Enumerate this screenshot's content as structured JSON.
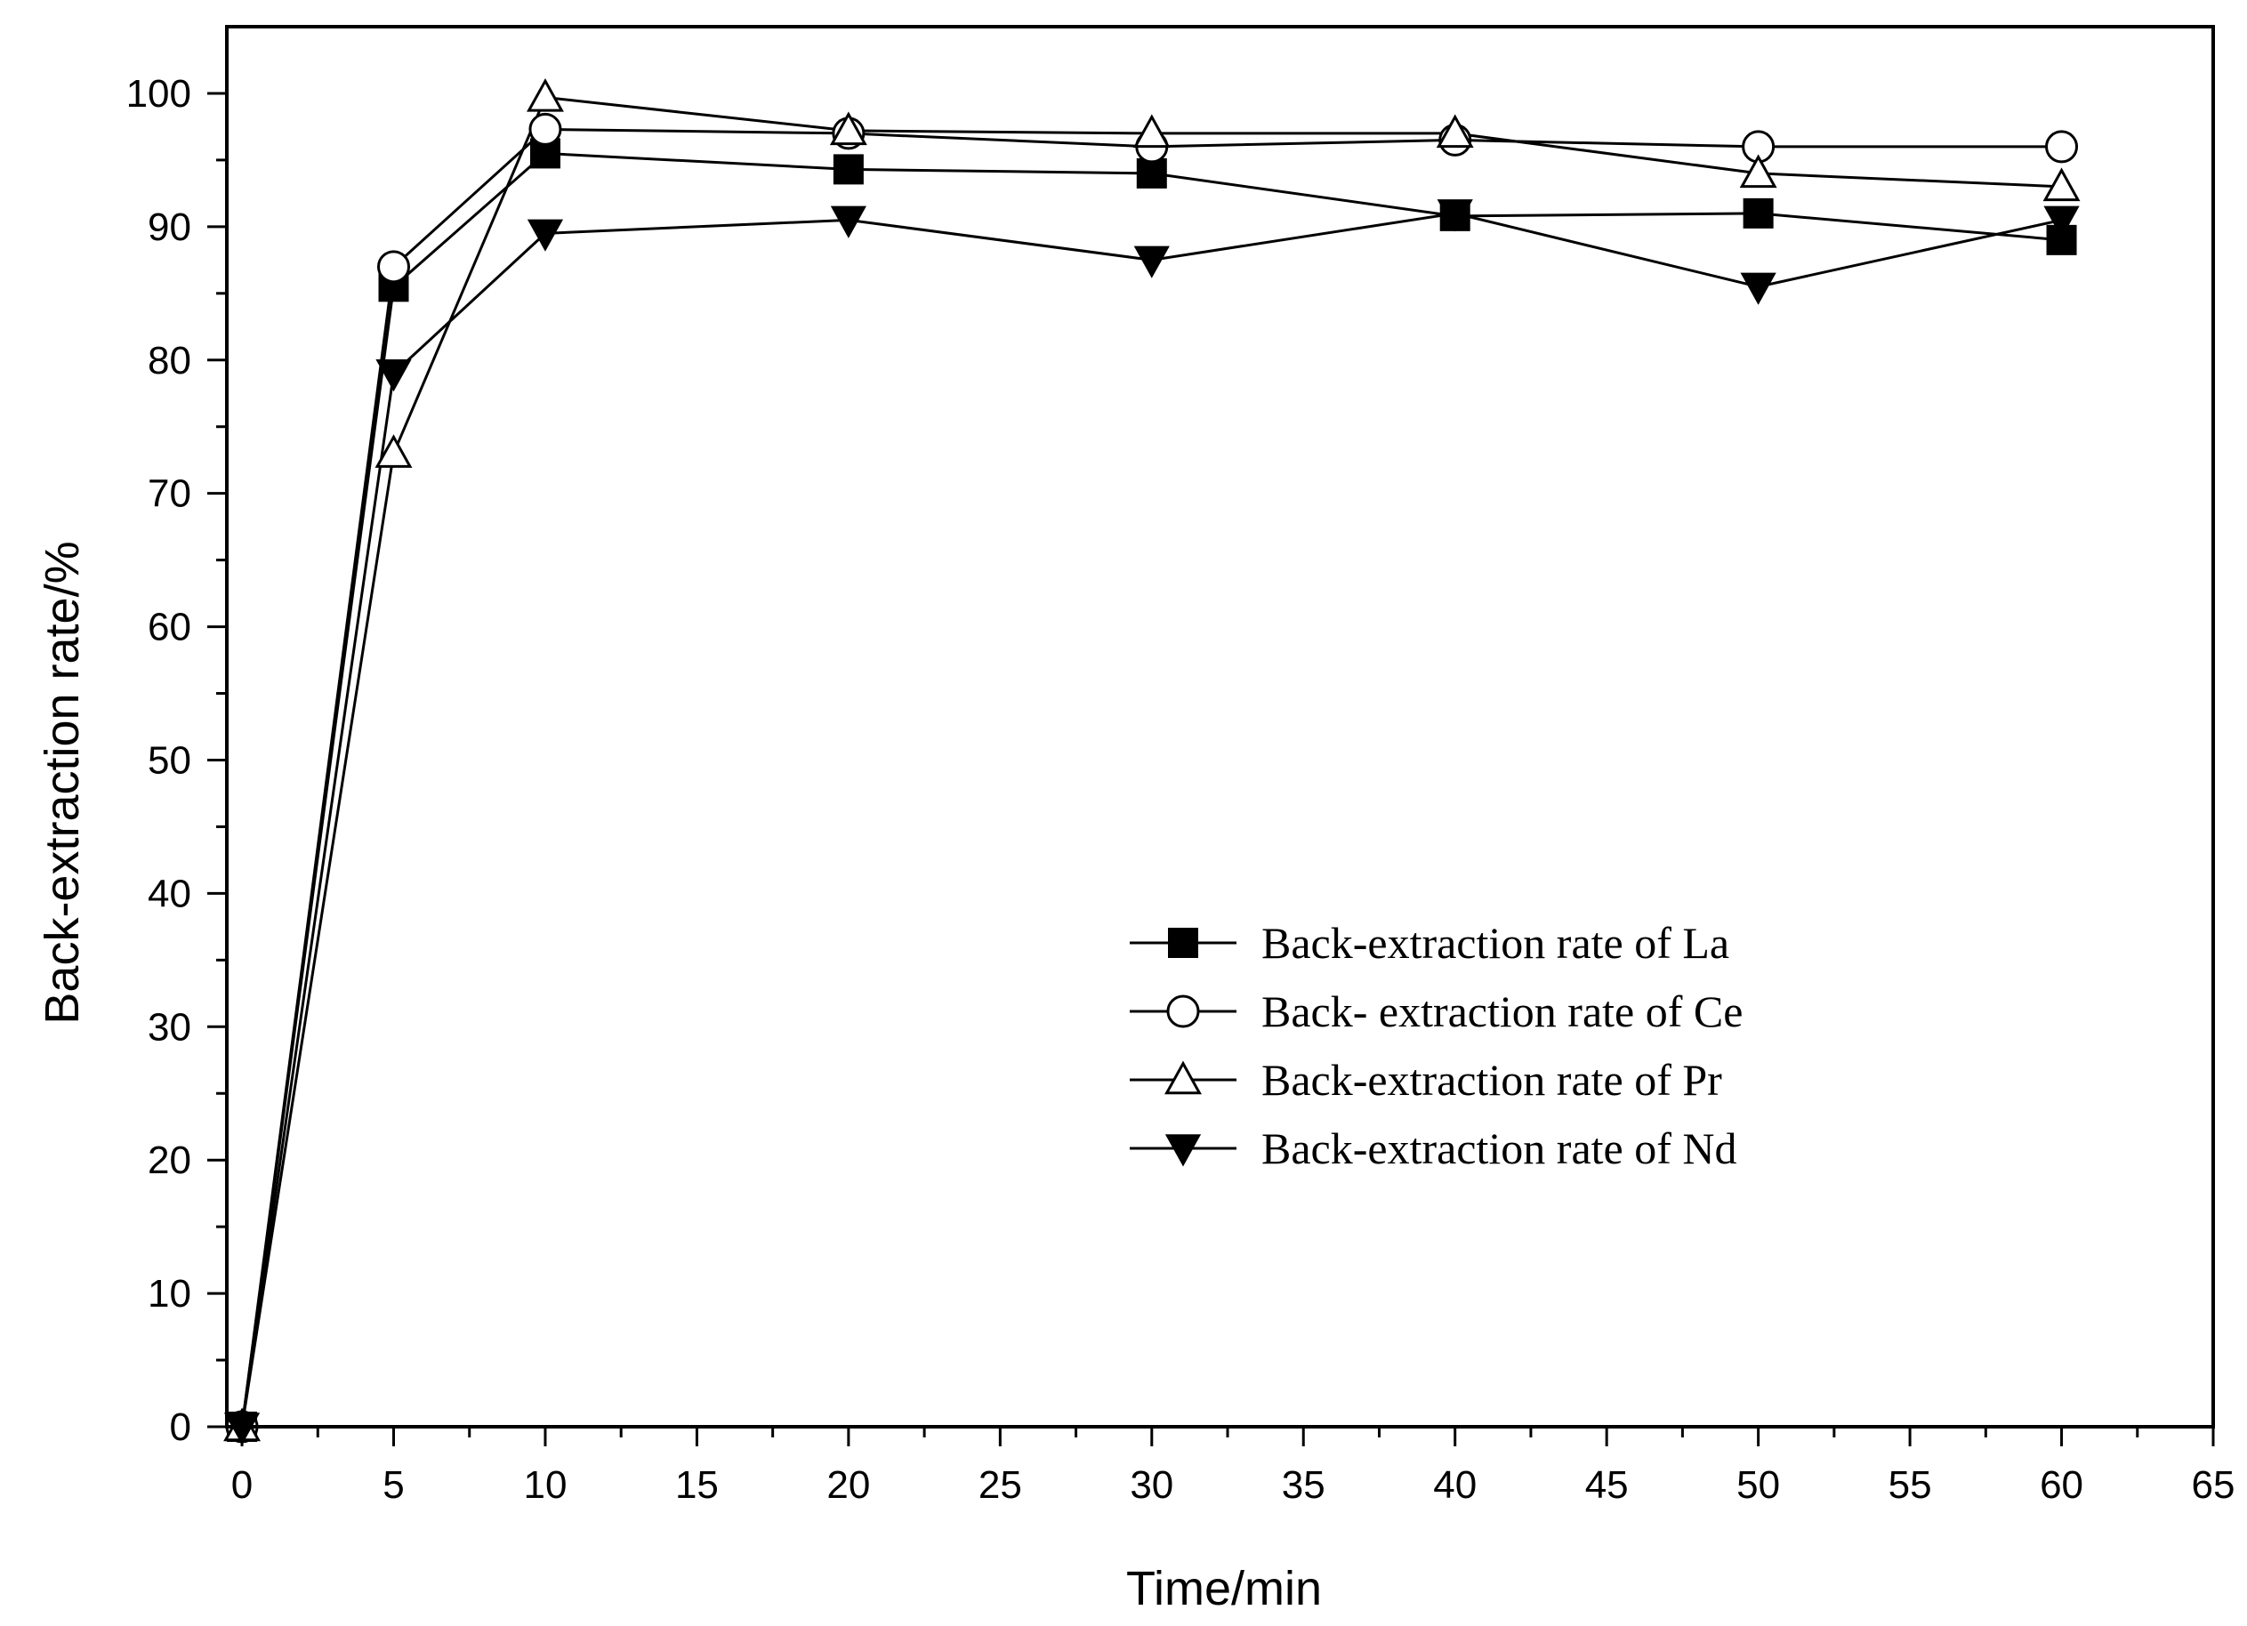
{
  "chart_data": {
    "type": "line",
    "title": "",
    "xlabel": "Time/min",
    "ylabel": "Back-extraction rate/%",
    "xlim": [
      -0.5,
      65
    ],
    "ylim": [
      0,
      105
    ],
    "xticks": [
      0,
      5,
      10,
      15,
      20,
      25,
      30,
      35,
      40,
      45,
      50,
      55,
      60,
      65
    ],
    "yticks": [
      0,
      10,
      20,
      30,
      40,
      50,
      60,
      70,
      80,
      90,
      100
    ],
    "grid": false,
    "legend_position": "lower-right",
    "x": [
      0,
      5,
      10,
      20,
      30,
      40,
      50,
      60
    ],
    "series": [
      {
        "name": "Back-extraction rate of La",
        "marker": "square-filled",
        "values": [
          0,
          85.5,
          95.5,
          94.3,
          94,
          90.8,
          91,
          89
        ]
      },
      {
        "name": "Back- extraction rate of Ce",
        "marker": "circle-open",
        "values": [
          0,
          87,
          97.3,
          97,
          96,
          96.5,
          96,
          96
        ]
      },
      {
        "name": "Back-extraction rate of Pr",
        "marker": "triangle-up-open",
        "values": [
          0,
          73,
          99.7,
          97.2,
          97,
          97,
          94,
          93
        ]
      },
      {
        "name": "Back-extraction rate of Nd",
        "marker": "triangle-down-filled",
        "values": [
          0,
          79,
          89.5,
          90.5,
          87.5,
          91,
          85.5,
          90.5
        ]
      }
    ]
  }
}
